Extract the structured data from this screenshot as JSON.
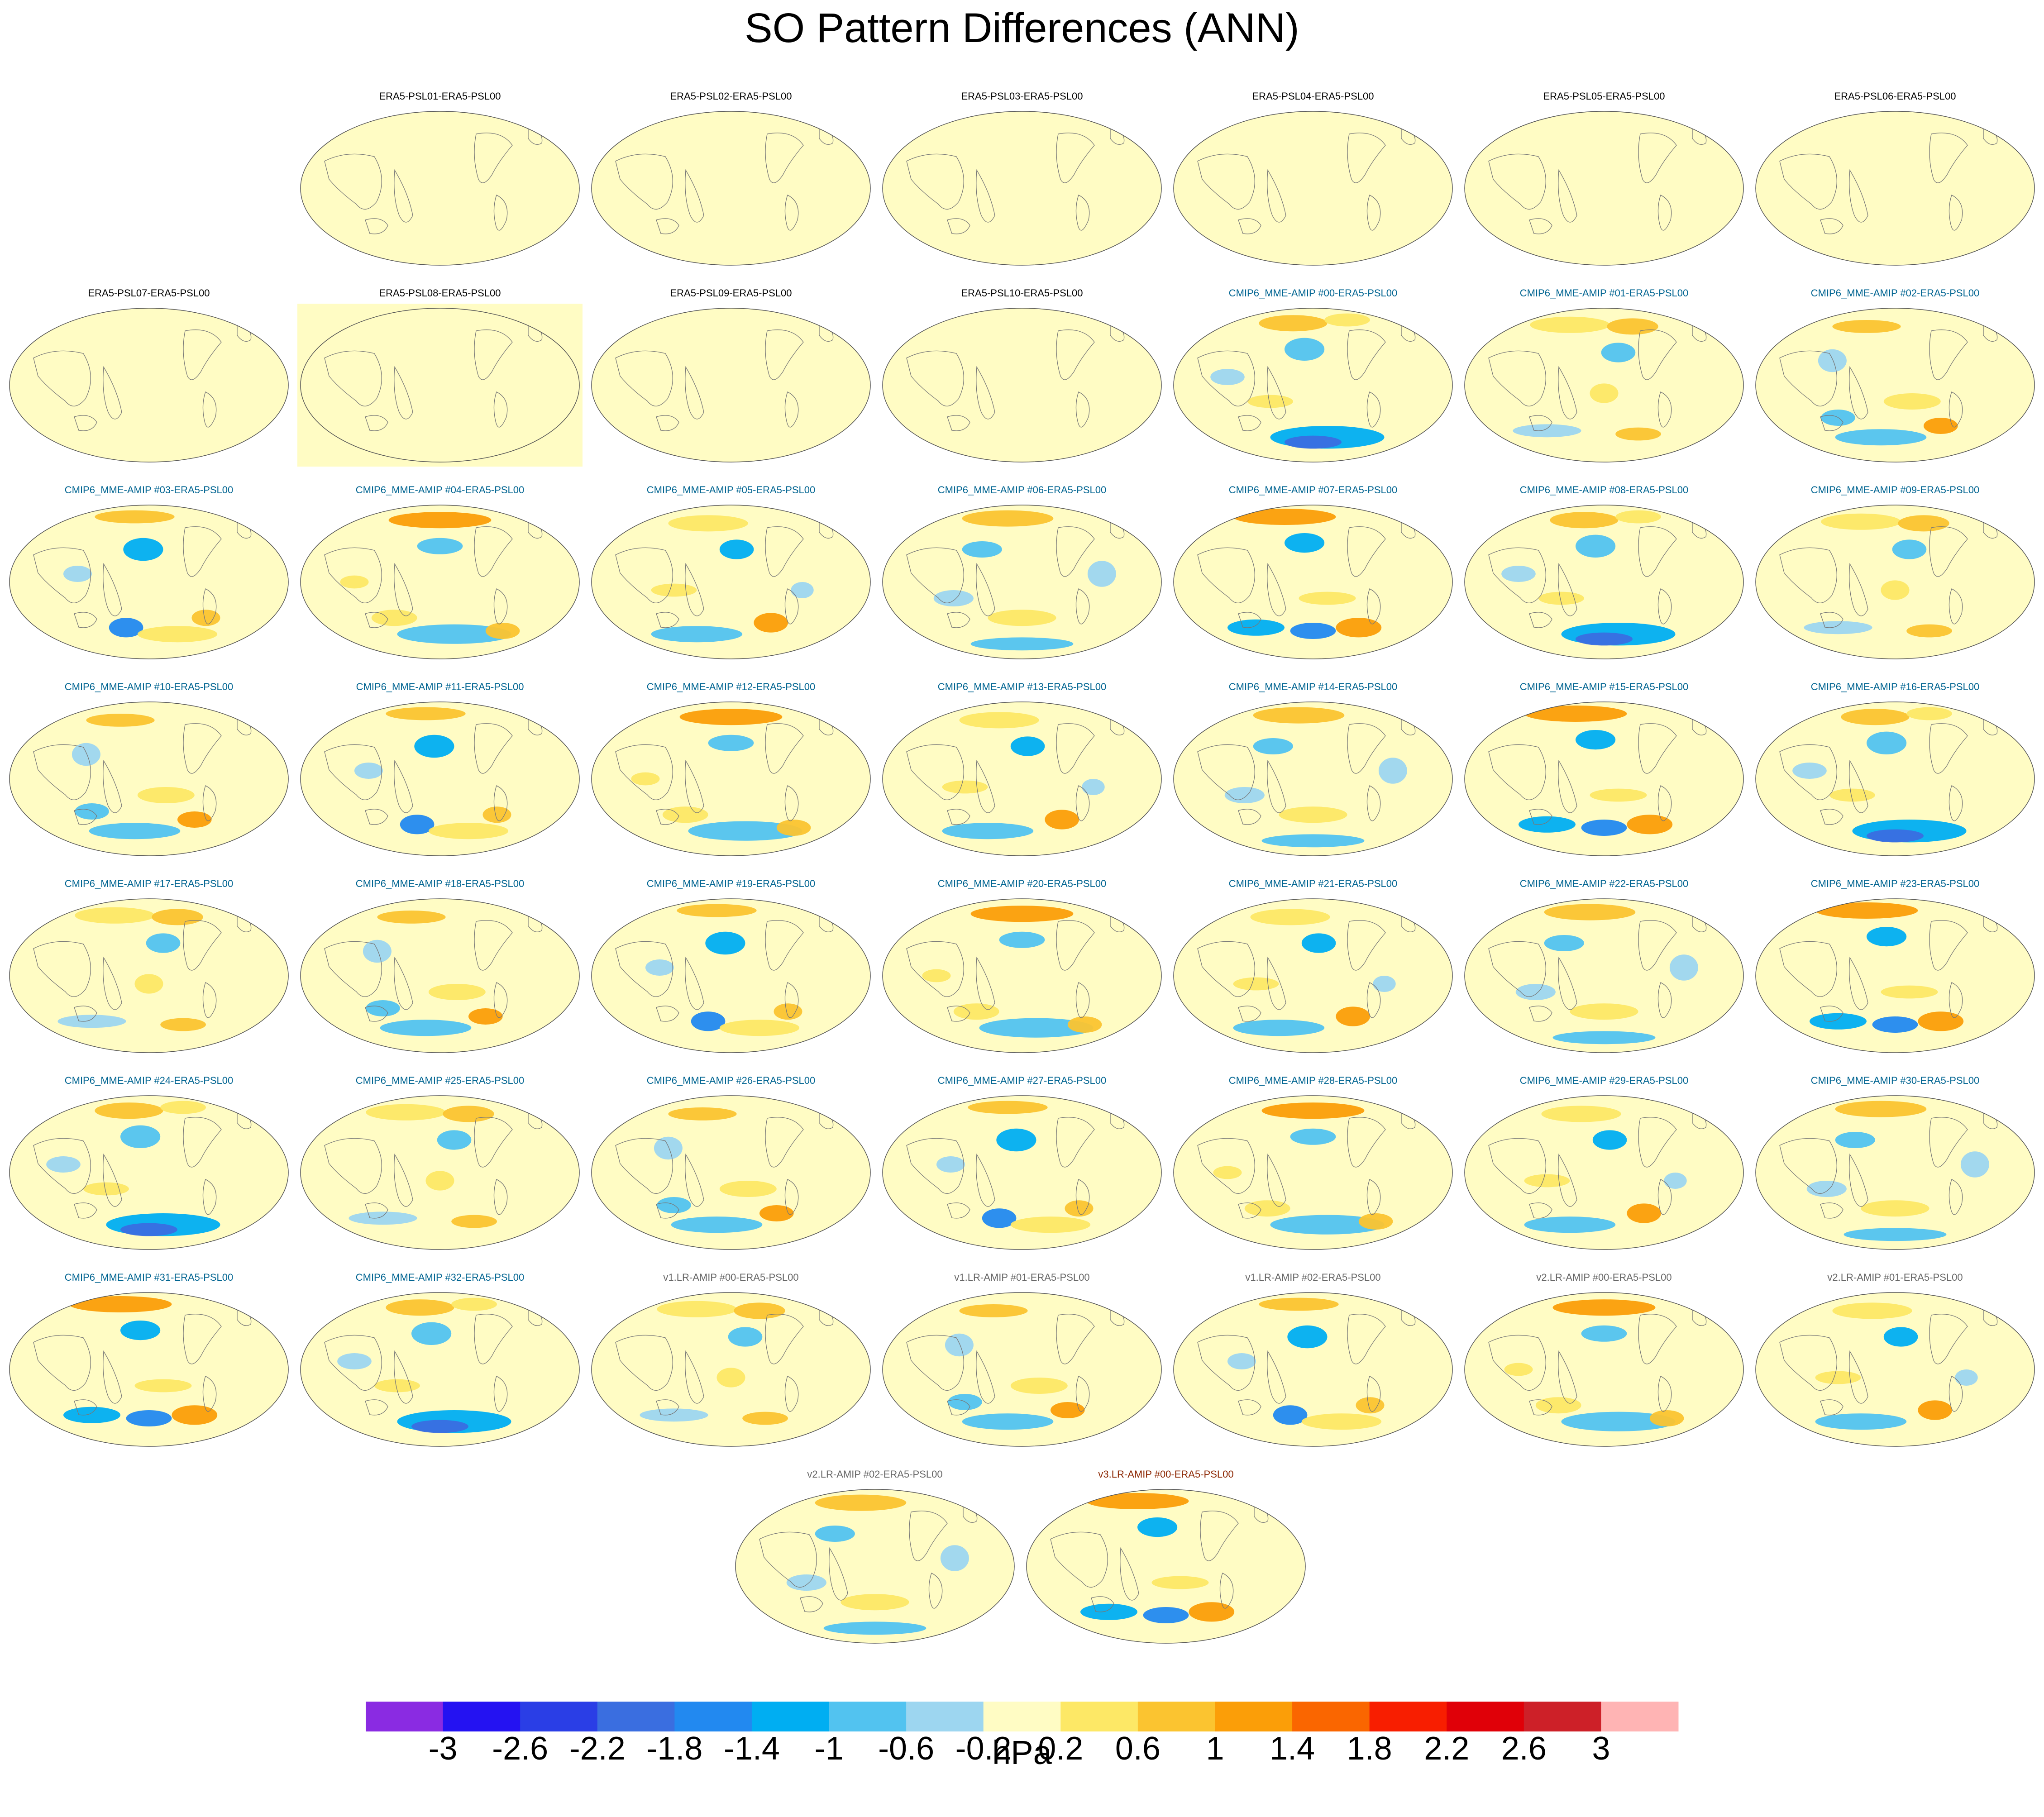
{
  "title": "SO Pattern Differences (ANN)",
  "chart_data": {
    "type": "heatmap",
    "title": "SO Pattern Differences (ANN)",
    "projection": "Robinson (Pacific-centered)",
    "units": "hPa",
    "levels": [
      -3,
      -2.6,
      -2.2,
      -1.8,
      -1.4,
      -1,
      -0.6,
      -0.2,
      0.2,
      0.6,
      1,
      1.4,
      1.8,
      2.2,
      2.6,
      3
    ],
    "level_labels": [
      "-3",
      "-2.6",
      "-2.2",
      "-1.8",
      "-1.4",
      "-1",
      "-0.6",
      "-0.2",
      "0.2",
      "0.6",
      "1",
      "1.4",
      "1.8",
      "2.2",
      "2.6",
      "3"
    ],
    "colors": [
      "#8a2be2",
      "#2412f2",
      "#2a3ee6",
      "#3a6ee0",
      "#2289f0",
      "#00aef2",
      "#52c3f0",
      "#9dd6f0",
      "#fffcc4",
      "#fde866",
      "#fbc430",
      "#fb9e08",
      "#fa6600",
      "#f81e00",
      "#e00008",
      "#cd2028",
      "#ffb4b4"
    ],
    "panels": [
      {
        "label": "ERA5-PSL01-ERA5-PSL00",
        "group": "era5",
        "pattern": 0
      },
      {
        "label": "ERA5-PSL02-ERA5-PSL00",
        "group": "era5",
        "pattern": 0
      },
      {
        "label": "ERA5-PSL03-ERA5-PSL00",
        "group": "era5",
        "pattern": 0
      },
      {
        "label": "ERA5-PSL04-ERA5-PSL00",
        "group": "era5",
        "pattern": 0
      },
      {
        "label": "ERA5-PSL05-ERA5-PSL00",
        "group": "era5",
        "pattern": 0
      },
      {
        "label": "ERA5-PSL06-ERA5-PSL00",
        "group": "era5",
        "pattern": 0
      },
      {
        "label": "ERA5-PSL07-ERA5-PSL00",
        "group": "era5",
        "pattern": 0
      },
      {
        "label": "ERA5-PSL08-ERA5-PSL00",
        "group": "era5",
        "pattern": 0,
        "highlight": true
      },
      {
        "label": "ERA5-PSL09-ERA5-PSL00",
        "group": "era5",
        "pattern": 0
      },
      {
        "label": "ERA5-PSL10-ERA5-PSL00",
        "group": "era5",
        "pattern": 0
      },
      {
        "label": "CMIP6_MME-AMIP  #00-ERA5-PSL00",
        "group": "cmip6",
        "pattern": 1
      },
      {
        "label": "CMIP6_MME-AMIP  #01-ERA5-PSL00",
        "group": "cmip6",
        "pattern": 2
      },
      {
        "label": "CMIP6_MME-AMIP  #02-ERA5-PSL00",
        "group": "cmip6",
        "pattern": 3
      },
      {
        "label": "CMIP6_MME-AMIP  #03-ERA5-PSL00",
        "group": "cmip6",
        "pattern": 4
      },
      {
        "label": "CMIP6_MME-AMIP  #04-ERA5-PSL00",
        "group": "cmip6",
        "pattern": 5
      },
      {
        "label": "CMIP6_MME-AMIP  #05-ERA5-PSL00",
        "group": "cmip6",
        "pattern": 6
      },
      {
        "label": "CMIP6_MME-AMIP  #06-ERA5-PSL00",
        "group": "cmip6",
        "pattern": 7
      },
      {
        "label": "CMIP6_MME-AMIP  #07-ERA5-PSL00",
        "group": "cmip6",
        "pattern": 8
      },
      {
        "label": "CMIP6_MME-AMIP  #08-ERA5-PSL00",
        "group": "cmip6",
        "pattern": 1
      },
      {
        "label": "CMIP6_MME-AMIP  #09-ERA5-PSL00",
        "group": "cmip6",
        "pattern": 2
      },
      {
        "label": "CMIP6_MME-AMIP  #10-ERA5-PSL00",
        "group": "cmip6",
        "pattern": 3
      },
      {
        "label": "CMIP6_MME-AMIP  #11-ERA5-PSL00",
        "group": "cmip6",
        "pattern": 4
      },
      {
        "label": "CMIP6_MME-AMIP  #12-ERA5-PSL00",
        "group": "cmip6",
        "pattern": 5
      },
      {
        "label": "CMIP6_MME-AMIP  #13-ERA5-PSL00",
        "group": "cmip6",
        "pattern": 6
      },
      {
        "label": "CMIP6_MME-AMIP  #14-ERA5-PSL00",
        "group": "cmip6",
        "pattern": 7
      },
      {
        "label": "CMIP6_MME-AMIP  #15-ERA5-PSL00",
        "group": "cmip6",
        "pattern": 8
      },
      {
        "label": "CMIP6_MME-AMIP  #16-ERA5-PSL00",
        "group": "cmip6",
        "pattern": 1
      },
      {
        "label": "CMIP6_MME-AMIP  #17-ERA5-PSL00",
        "group": "cmip6",
        "pattern": 2
      },
      {
        "label": "CMIP6_MME-AMIP  #18-ERA5-PSL00",
        "group": "cmip6",
        "pattern": 3
      },
      {
        "label": "CMIP6_MME-AMIP  #19-ERA5-PSL00",
        "group": "cmip6",
        "pattern": 4
      },
      {
        "label": "CMIP6_MME-AMIP  #20-ERA5-PSL00",
        "group": "cmip6",
        "pattern": 5
      },
      {
        "label": "CMIP6_MME-AMIP  #21-ERA5-PSL00",
        "group": "cmip6",
        "pattern": 6
      },
      {
        "label": "CMIP6_MME-AMIP  #22-ERA5-PSL00",
        "group": "cmip6",
        "pattern": 7
      },
      {
        "label": "CMIP6_MME-AMIP  #23-ERA5-PSL00",
        "group": "cmip6",
        "pattern": 8
      },
      {
        "label": "CMIP6_MME-AMIP  #24-ERA5-PSL00",
        "group": "cmip6",
        "pattern": 1
      },
      {
        "label": "CMIP6_MME-AMIP  #25-ERA5-PSL00",
        "group": "cmip6",
        "pattern": 2
      },
      {
        "label": "CMIP6_MME-AMIP  #26-ERA5-PSL00",
        "group": "cmip6",
        "pattern": 3
      },
      {
        "label": "CMIP6_MME-AMIP  #27-ERA5-PSL00",
        "group": "cmip6",
        "pattern": 4
      },
      {
        "label": "CMIP6_MME-AMIP  #28-ERA5-PSL00",
        "group": "cmip6",
        "pattern": 5
      },
      {
        "label": "CMIP6_MME-AMIP  #29-ERA5-PSL00",
        "group": "cmip6",
        "pattern": 6
      },
      {
        "label": "CMIP6_MME-AMIP  #30-ERA5-PSL00",
        "group": "cmip6",
        "pattern": 7
      },
      {
        "label": "CMIP6_MME-AMIP  #31-ERA5-PSL00",
        "group": "cmip6",
        "pattern": 8
      },
      {
        "label": "CMIP6_MME-AMIP  #32-ERA5-PSL00",
        "group": "cmip6",
        "pattern": 1
      },
      {
        "label": "v1.LR-AMIP  #00-ERA5-PSL00",
        "group": "v1",
        "pattern": 2
      },
      {
        "label": "v1.LR-AMIP  #01-ERA5-PSL00",
        "group": "v1",
        "pattern": 3
      },
      {
        "label": "v1.LR-AMIP  #02-ERA5-PSL00",
        "group": "v1",
        "pattern": 4
      },
      {
        "label": "v2.LR-AMIP  #00-ERA5-PSL00",
        "group": "v2",
        "pattern": 5
      },
      {
        "label": "v2.LR-AMIP  #01-ERA5-PSL00",
        "group": "v2",
        "pattern": 6
      },
      {
        "label": "v2.LR-AMIP  #02-ERA5-PSL00",
        "group": "v2",
        "pattern": 7
      },
      {
        "label": "v3.LR-AMIP  #00-ERA5-PSL00",
        "group": "v3",
        "pattern": 8
      }
    ],
    "group_colors": {
      "era5": "#000000",
      "cmip6": "#006491",
      "v1": "#666666",
      "v2": "#666666",
      "v3": "#8b2500"
    }
  },
  "units_label": "hPa"
}
